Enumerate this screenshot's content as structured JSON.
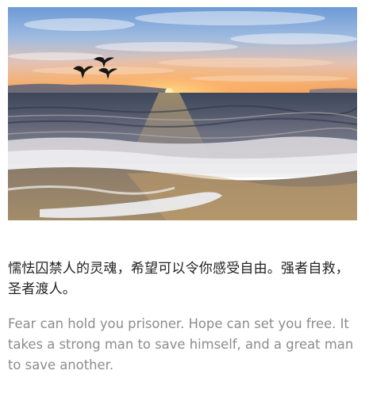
{
  "image": {
    "subject": "sunset-over-sea-with-flying-birds"
  },
  "quote": {
    "chinese": "懦怯囚禁人的灵魂，希望可以令你感受自由。强者自救，圣者渡人。",
    "english": "Fear can hold you prisoner. Hope can set you free. It takes a strong man to save himself, and a great man to save another."
  },
  "colors": {
    "chinese_text": "#222222",
    "english_text": "#8c8c8c",
    "background": "#ffffff"
  }
}
